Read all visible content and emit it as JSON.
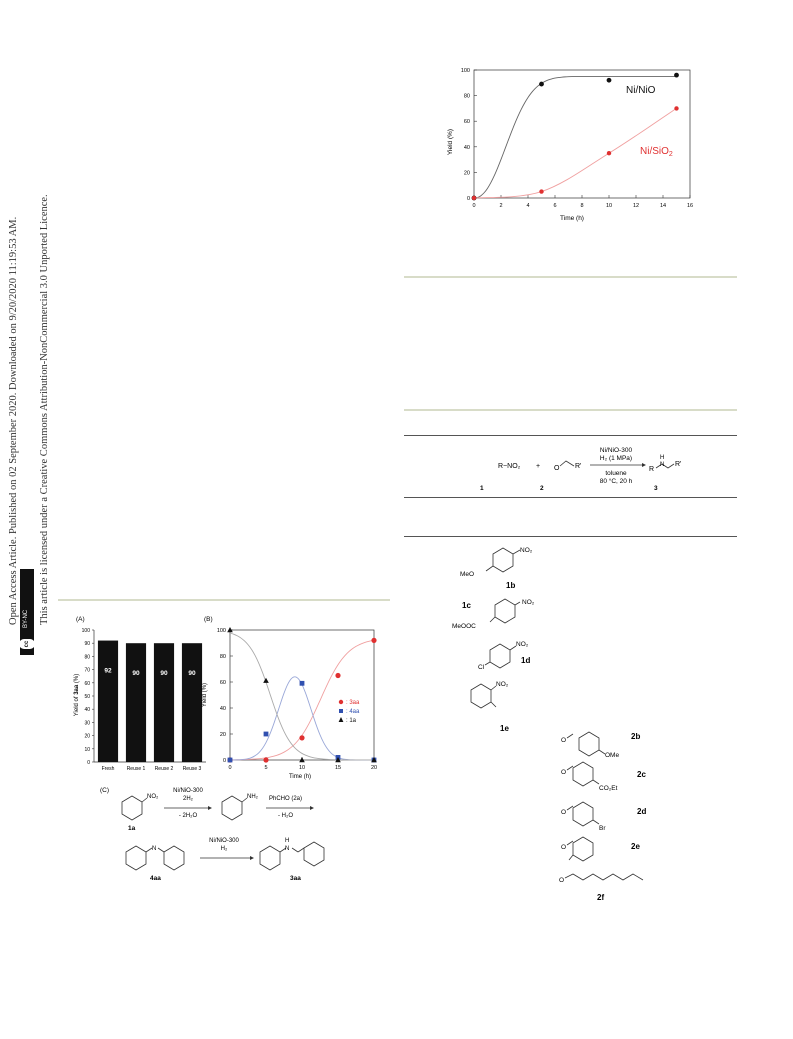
{
  "sidebar": {
    "line1": "Open Access Article. Published on 02 September 2020. Downloaded on 9/20/2020 11:19:53 AM.",
    "line2": "This article is licensed under a Creative Commons Attribution-NonCommercial 3.0 Unported Licence.",
    "badge_cc": "cc",
    "badge_label": "BY-NC"
  },
  "chart_top": {
    "type": "line",
    "xlabel": "Time (h)",
    "ylabel": "Yield (%)",
    "xlim": [
      0,
      16
    ],
    "ylim": [
      0,
      100
    ],
    "xticks": [
      0,
      2,
      4,
      6,
      8,
      10,
      12,
      14,
      16
    ],
    "yticks": [
      0,
      20,
      40,
      60,
      80,
      100
    ],
    "series": [
      {
        "name": "Ni/NiO",
        "color": "#111111",
        "x": [
          0,
          5,
          10,
          15
        ],
        "y": [
          0,
          89,
          92,
          96
        ]
      },
      {
        "name": "Ni/SiO2",
        "color": "#e03030",
        "x": [
          0,
          5,
          10,
          15
        ],
        "y": [
          0,
          5,
          35,
          70
        ]
      }
    ]
  },
  "chart_a": {
    "type": "bar",
    "panel": "(A)",
    "ylabel": "Yield of 3aa (%)",
    "ylim": [
      0,
      100
    ],
    "yticks": [
      0,
      10,
      20,
      30,
      40,
      50,
      60,
      70,
      80,
      90,
      100
    ],
    "categories": [
      "Fresh",
      "Reuse 1",
      "Reuse 2",
      "Reuse 3"
    ],
    "values": [
      92,
      90,
      90,
      90
    ],
    "value_labels": [
      "92",
      "90",
      "90",
      "90"
    ]
  },
  "chart_b": {
    "type": "line",
    "panel": "(B)",
    "xlabel": "Time (h)",
    "ylabel": "Yield (%)",
    "xlim": [
      0,
      20
    ],
    "ylim": [
      0,
      100
    ],
    "xticks": [
      0,
      5,
      10,
      15,
      20
    ],
    "yticks": [
      0,
      20,
      40,
      60,
      80,
      100
    ],
    "series": [
      {
        "name": "3aa",
        "color": "#e03030",
        "marker": "circle",
        "x": [
          0,
          5,
          10,
          15,
          20
        ],
        "y": [
          0,
          0,
          17,
          65,
          92
        ]
      },
      {
        "name": "4aa",
        "color": "#3050b0",
        "marker": "square",
        "x": [
          0,
          5,
          10,
          15,
          20
        ],
        "y": [
          0,
          20,
          59,
          2,
          0
        ]
      },
      {
        "name": "1a",
        "color": "#111111",
        "marker": "triangle",
        "x": [
          0,
          5,
          10,
          15,
          20
        ],
        "y": [
          100,
          61,
          0,
          0,
          0
        ]
      }
    ],
    "legend": [
      "3aa",
      "4aa",
      "1a"
    ]
  },
  "scheme_c": {
    "panel": "(C)",
    "cmpd_1a": "1a",
    "step1_top": "Ni/NiO-300",
    "step1_mid": "2H₂",
    "step1_bot": "- 2H₂O",
    "step2_top": "PhCHO (2a)",
    "step2_bot": "- H₂O",
    "cmpd_4aa": "4aa",
    "step3_top": "Ni/NiO-300",
    "step3_bot": "H₂",
    "cmpd_3aa": "3aa",
    "no2": "NO₂",
    "nh2": "NH₂",
    "nh": "H",
    "n": "N"
  },
  "scheme_table": {
    "reactant1": "R−NO₂",
    "plus": "+",
    "reactant2_r": "R'",
    "reactant2_o": "O",
    "cond1": "Ni/NiO-300",
    "cond2": "H₂ (1 MPa)",
    "cond3": "toluene",
    "cond4": "80 °C, 20 h",
    "product_r": "R",
    "product_nh": "H",
    "product_n": "N",
    "product_r2": "R'",
    "num1": "1",
    "num2": "2",
    "num3": "3"
  },
  "compounds": {
    "c1b": "1b",
    "c1b_sub": "MeO",
    "c1b_no2": "NO₂",
    "c1c": "1c",
    "c1c_sub": "MeOOC",
    "c1c_no2": "NO₂",
    "c1d": "1d",
    "c1d_sub": "Cl",
    "c1d_no2": "NO₂",
    "c1e": "1e",
    "c1e_no2": "NO₂",
    "c2b": "2b",
    "c2b_sub": "OMe",
    "c2c": "2c",
    "c2c_sub": "CO₂Et",
    "c2d": "2d",
    "c2d_sub": "Br",
    "c2e": "2e",
    "c2f": "2f",
    "o": "O"
  }
}
